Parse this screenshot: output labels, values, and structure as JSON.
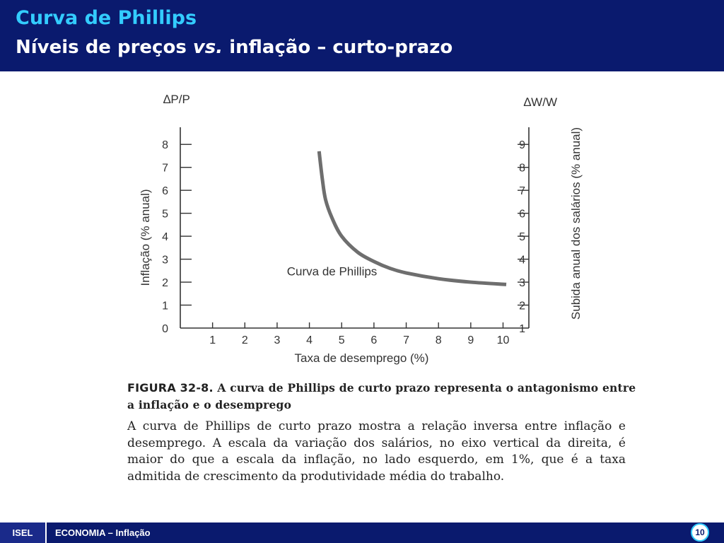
{
  "slide": {
    "title": "Curva de Phillips",
    "subtitle_prefix": "Níveis de preços ",
    "subtitle_em": "vs.",
    "subtitle_suffix": " inflação – curto-prazo"
  },
  "chart_data": {
    "type": "line",
    "left_axis": {
      "symbol": "∆P/P",
      "label": "Inflação (% anual)",
      "ticks": [
        0,
        1,
        2,
        3,
        4,
        5,
        6,
        7,
        8
      ],
      "range": [
        0,
        8.5
      ]
    },
    "right_axis": {
      "symbol": "∆W/W",
      "label": "Subida anual dos salários (% anual)",
      "ticks": [
        1,
        2,
        3,
        4,
        5,
        6,
        7,
        8,
        9
      ],
      "range": [
        1,
        9.5
      ]
    },
    "x_axis": {
      "label": "Taxa de desemprego (%)",
      "ticks": [
        1,
        2,
        3,
        4,
        5,
        6,
        7,
        8,
        9,
        10
      ],
      "range": [
        0,
        10.8
      ]
    },
    "curve_label": "Curva de Phillips",
    "curve_label_position": {
      "x": 4.7,
      "y": 2.3
    },
    "series": [
      {
        "points": [
          {
            "x": 4.3,
            "y": 7.7
          },
          {
            "x": 4.4,
            "y": 6.5
          },
          {
            "x": 4.5,
            "y": 5.6
          },
          {
            "x": 4.7,
            "y": 4.8
          },
          {
            "x": 5.0,
            "y": 4.0
          },
          {
            "x": 5.5,
            "y": 3.3
          },
          {
            "x": 6.0,
            "y": 2.9
          },
          {
            "x": 6.5,
            "y": 2.6
          },
          {
            "x": 7.0,
            "y": 2.4
          },
          {
            "x": 8.0,
            "y": 2.15
          },
          {
            "x": 9.0,
            "y": 2.0
          },
          {
            "x": 10.1,
            "y": 1.9
          }
        ],
        "color": "#6e6e6e"
      }
    ],
    "grid": false
  },
  "caption": {
    "figure_number": "FIGURA 32-8.",
    "figure_title": "A curva de Phillips de curto prazo representa o antagonismo entre a inflação e o desemprego",
    "body": "A curva de Phillips de curto prazo mostra a relação inversa entre inflação e desemprego. A escala da variação dos salários, no eixo vertical da direita, é maior do que a escala da inflação, no lado esquerdo, em 1%, que é a taxa admitida de crescimento da produtividade média do trabalho."
  },
  "footer": {
    "logo": "ISEL",
    "text": "ECONOMIA – Inflação",
    "page_number": "10"
  }
}
